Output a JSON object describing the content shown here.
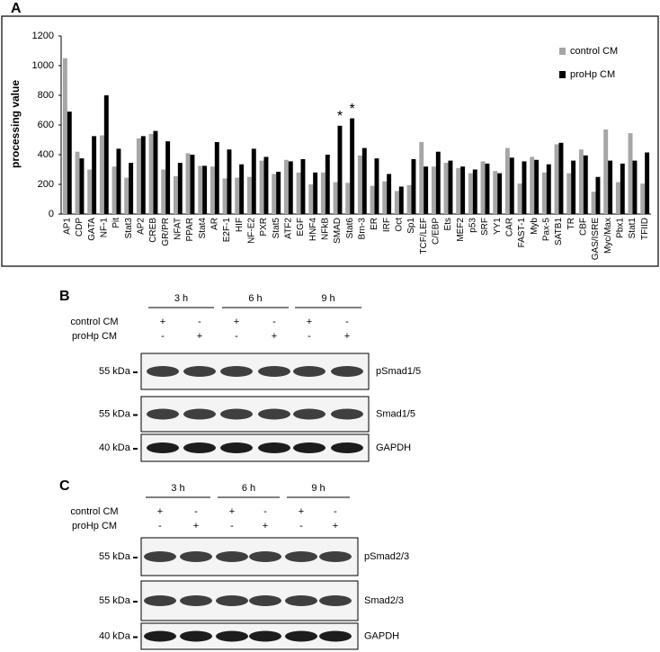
{
  "chart_data": {
    "type": "bar",
    "panel": "A",
    "ylabel": "processing value",
    "categories": [
      "AP1",
      "CDP",
      "GATA",
      "NF-1",
      "Pit",
      "Stat3",
      "AP2",
      "CREB",
      "GR/PR",
      "NFAT",
      "PPAR",
      "Stat4",
      "AR",
      "E2F-1",
      "HIF",
      "NF-E2",
      "PXR",
      "Stat5",
      "ATF2",
      "EGF",
      "HNF4",
      "NFkB",
      "SMAD",
      "Stat6",
      "Brn-3",
      "ER",
      "IRF",
      "Oct",
      "Sp1",
      "TCF/LEF",
      "C/EBP",
      "Ets",
      "MEF2",
      "p53",
      "SRF",
      "YY1",
      "CAR",
      "FAST-1",
      "Myb",
      "Pax-5",
      "SATB1",
      "TR",
      "CBF",
      "GAS/ISRE",
      "Myc/Max",
      "Pbx1",
      "Stat1",
      "TFIID"
    ],
    "series": [
      {
        "name": "control CM",
        "color": "#a6a6a6",
        "values": [
          1050,
          420,
          300,
          530,
          320,
          245,
          510,
          540,
          300,
          255,
          410,
          325,
          320,
          240,
          245,
          250,
          360,
          270,
          365,
          280,
          200,
          280,
          215,
          210,
          395,
          190,
          220,
          155,
          195,
          485,
          320,
          345,
          310,
          275,
          355,
          290,
          445,
          205,
          385,
          280,
          470,
          275,
          435,
          150,
          570,
          215,
          545,
          205
        ]
      },
      {
        "name": "proHp CM",
        "color": "#000000",
        "values": [
          690,
          375,
          525,
          800,
          440,
          345,
          525,
          560,
          490,
          345,
          400,
          325,
          485,
          435,
          335,
          440,
          385,
          285,
          355,
          370,
          280,
          400,
          595,
          645,
          445,
          375,
          270,
          185,
          370,
          320,
          420,
          360,
          320,
          300,
          340,
          275,
          380,
          355,
          365,
          335,
          480,
          360,
          395,
          250,
          360,
          340,
          360,
          415
        ]
      }
    ],
    "annotations": [
      {
        "text": "*",
        "category": "SMAD",
        "series": "proHp CM"
      },
      {
        "text": "*",
        "category": "Stat6",
        "series": "proHp CM"
      }
    ],
    "ylim": [
      0,
      1200
    ],
    "yticks": [
      0,
      200,
      400,
      600,
      800,
      1000,
      1200
    ],
    "legend": "upper right"
  },
  "blots": [
    {
      "panel": "B",
      "times": [
        "3 h",
        "6 h",
        "9 h"
      ],
      "conditions": [
        {
          "name": "control CM",
          "marks": [
            "+",
            "-",
            "+",
            "-",
            "+",
            "-"
          ]
        },
        {
          "name": "proHp CM",
          "marks": [
            "-",
            "+",
            "-",
            "+",
            "-",
            "+"
          ]
        }
      ],
      "rows": [
        {
          "marker": "55 kDa",
          "protein": "pSmad1/5"
        },
        {
          "marker": "55 kDa",
          "protein": "Smad1/5"
        },
        {
          "marker": "40 kDa",
          "protein": "GAPDH"
        }
      ]
    },
    {
      "panel": "C",
      "times": [
        "3 h",
        "6 h",
        "9 h"
      ],
      "conditions": [
        {
          "name": "control CM",
          "marks": [
            "+",
            "-",
            "+",
            "-",
            "+",
            "-"
          ]
        },
        {
          "name": "proHp  CM",
          "marks": [
            "-",
            "+",
            "-",
            "+",
            "-",
            "+"
          ]
        }
      ],
      "rows": [
        {
          "marker": "55 kDa",
          "protein": "pSmad2/3"
        },
        {
          "marker": "55 kDa",
          "protein": "Smad2/3"
        },
        {
          "marker": "40 kDa",
          "protein": "GAPDH"
        }
      ]
    }
  ]
}
